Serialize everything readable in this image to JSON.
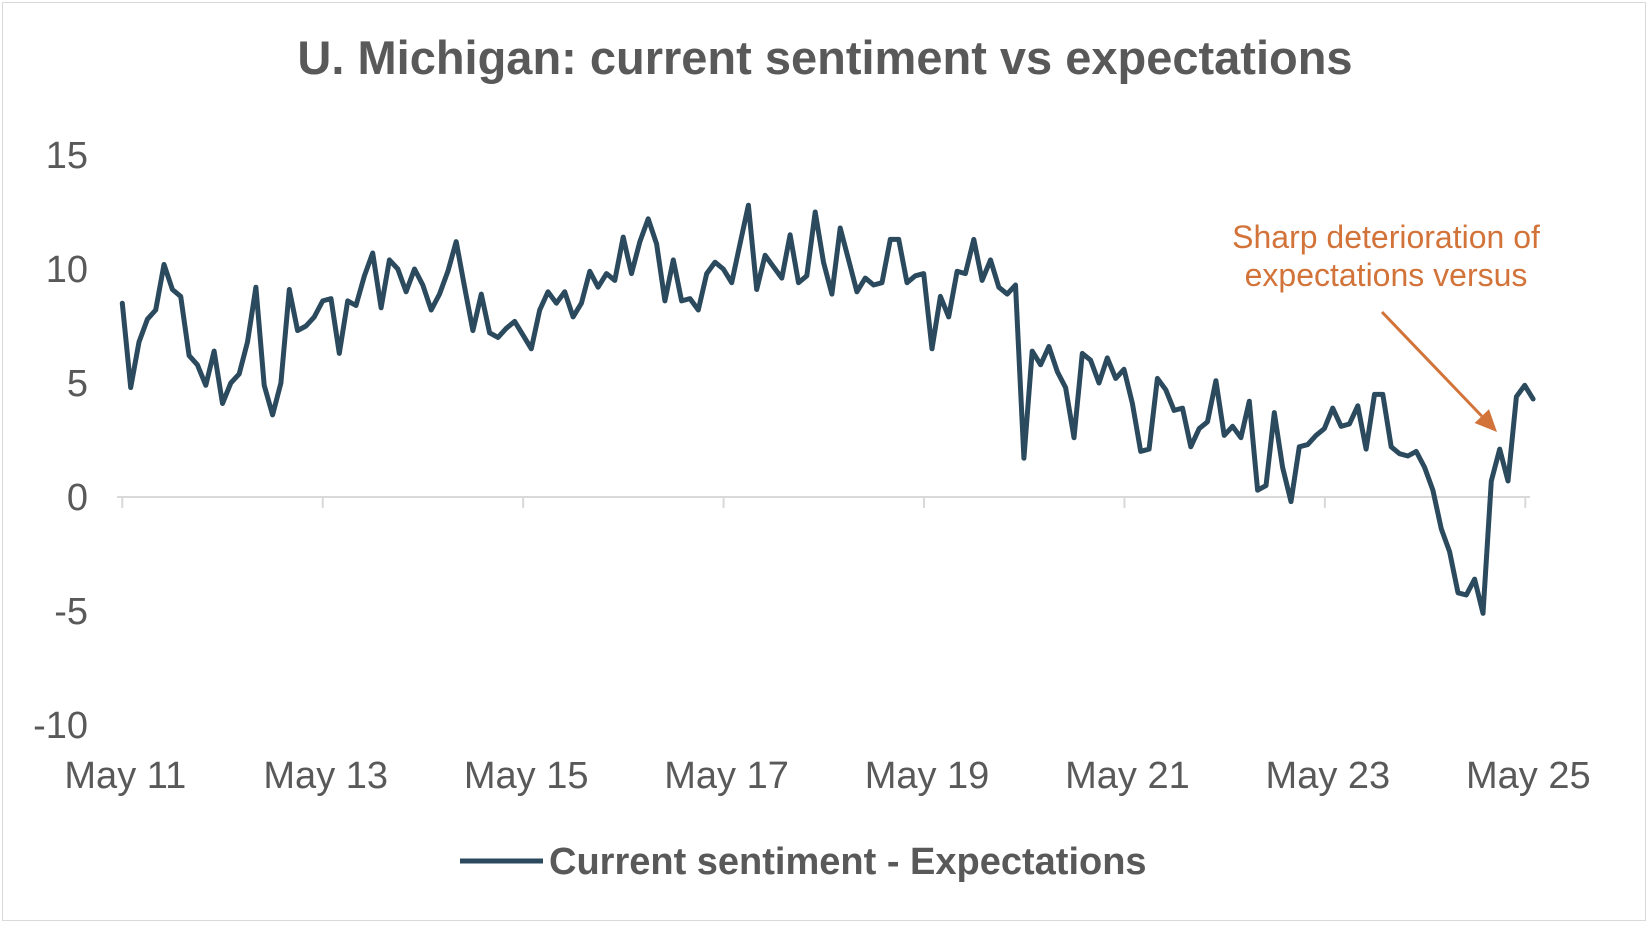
{
  "colors": {
    "series": "#2b4a5e",
    "annotation": "#d2733a",
    "text": "#595959",
    "axis": "#d9d9d9",
    "border": "#d9d9d9"
  },
  "chart_data": {
    "type": "line",
    "title": "U. Michigan: current sentiment vs expectations",
    "xlabel": "",
    "ylabel": "",
    "ylim": [
      -10,
      15
    ],
    "yticks": [
      "15",
      "10",
      "5",
      "0",
      "-5",
      "-10"
    ],
    "ytick_values": [
      15,
      10,
      5,
      0,
      -5,
      -10
    ],
    "xtick_labels": [
      "May 11",
      "May 13",
      "May 15",
      "May 17",
      "May 19",
      "May 21",
      "May 23",
      "May 25"
    ],
    "xtick_dates": [
      2011.333,
      2013.333,
      2015.333,
      2017.333,
      2019.333,
      2021.333,
      2023.333,
      2025.333
    ],
    "xlim": [
      2011.3,
      2025.36
    ],
    "grid": false,
    "legend_position": "bottom-center",
    "series": [
      {
        "name": "Current sentiment - Expectations",
        "x_start": 2011.333,
        "step": 0.0833,
        "values": [
          8.5,
          4.8,
          6.8,
          7.8,
          8.2,
          10.2,
          9.1,
          8.8,
          6.2,
          5.8,
          4.9,
          6.4,
          4.1,
          5.0,
          5.4,
          6.8,
          9.2,
          4.9,
          3.6,
          5.0,
          9.1,
          7.3,
          7.5,
          7.9,
          8.6,
          8.7,
          6.3,
          8.6,
          8.4,
          9.7,
          10.7,
          8.3,
          10.4,
          10.0,
          9.0,
          10.0,
          9.3,
          8.2,
          8.9,
          9.9,
          11.2,
          9.2,
          7.3,
          8.9,
          7.2,
          7.0,
          7.4,
          7.7,
          7.1,
          6.5,
          8.2,
          9.0,
          8.5,
          9.0,
          7.9,
          8.5,
          9.9,
          9.2,
          9.8,
          9.5,
          11.4,
          9.8,
          11.2,
          12.2,
          11.1,
          8.6,
          10.4,
          8.6,
          8.7,
          8.2,
          9.8,
          10.3,
          10.0,
          9.4,
          11.1,
          12.8,
          9.1,
          10.6,
          10.1,
          9.6,
          11.5,
          9.4,
          9.7,
          12.5,
          10.3,
          8.9,
          11.8,
          10.4,
          9.0,
          9.6,
          9.3,
          9.4,
          11.3,
          11.3,
          9.4,
          9.7,
          9.8,
          6.5,
          8.8,
          7.9,
          9.9,
          9.8,
          11.3,
          9.5,
          10.4,
          9.2,
          8.9,
          9.3,
          1.7,
          6.4,
          5.8,
          6.6,
          5.5,
          4.8,
          2.6,
          6.3,
          6.0,
          5.0,
          6.1,
          5.2,
          5.6,
          4.1,
          2.0,
          2.1,
          5.2,
          4.7,
          3.8,
          3.9,
          2.2,
          3.0,
          3.3,
          5.1,
          2.7,
          3.1,
          2.6,
          4.2,
          0.3,
          0.5,
          3.7,
          1.3,
          -0.2,
          2.2,
          2.3,
          2.7,
          3.0,
          3.9,
          3.1,
          3.2,
          4.0,
          2.1,
          4.5,
          4.5,
          2.2,
          1.9,
          1.8,
          2.0,
          1.3,
          0.3,
          -1.4,
          -2.4,
          -4.2,
          -4.3,
          -3.6,
          -5.1,
          0.7,
          2.1,
          0.7,
          4.4,
          4.9,
          4.3
        ]
      }
    ],
    "annotation": {
      "lines": [
        "Sharp deterioration of",
        "expectations versus"
      ]
    }
  }
}
